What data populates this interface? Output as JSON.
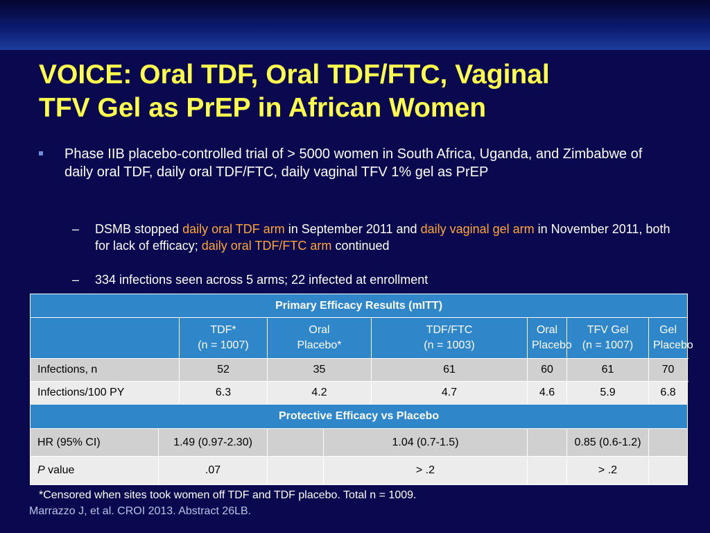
{
  "slide": {
    "title_line1": "VOICE: Oral TDF, Oral TDF/FTC, Vaginal",
    "title_line2": "TFV Gel as PrEP in African Women",
    "bullet": "Phase IIB placebo-controlled trial of > 5000 women in South Africa, Uganda, and Zimbabwe of daily oral TDF, daily oral TDF/FTC, daily vaginal TFV 1% gel as PrEP",
    "sub1": {
      "dash": "–",
      "t1": "DSMB stopped ",
      "h1": "daily oral TDF arm",
      "t2": " in September 2011 and ",
      "h2": "daily vaginal gel arm",
      "t3": " in November 2011, both for lack of efficacy; ",
      "h3": "daily oral TDF/FTC arm",
      "t4": " continued"
    },
    "sub2": {
      "dash": "–",
      "text": "334 infections seen across 5 arms; 22 infected at enrollment"
    }
  },
  "table": {
    "section1": "Primary Efficacy Results (mITT)",
    "columns": [
      {
        "l1": "TDF*",
        "l2": "(n = 1007)"
      },
      {
        "l1": "Oral",
        "l2": "Placebo*"
      },
      {
        "l1": "TDF/FTC",
        "l2": "(n = 1003)"
      },
      {
        "l1": "Oral",
        "l2": "Placebo"
      },
      {
        "l1": "TFV Gel",
        "l2": "(n = 1007)"
      },
      {
        "l1": "Gel",
        "l2": "Placebo"
      }
    ],
    "rows": [
      {
        "label": "Infections, n",
        "values": [
          "52",
          "35",
          "61",
          "60",
          "61",
          "70"
        ]
      },
      {
        "label": "Infections/100 PY",
        "values": [
          "6.3",
          "4.2",
          "4.7",
          "4.6",
          "5.9",
          "6.8"
        ]
      }
    ],
    "section2": "Protective Efficacy vs Placebo",
    "hr": {
      "label": "HR (95% CI)",
      "tdf": "1.49 (0.97-2.30)",
      "tdf_ftc": "1.04 (0.7-1.5)",
      "gel": "0.85 (0.6-1.2)"
    },
    "pval": {
      "label_italic": "P",
      "label_rest": " value",
      "tdf": ".07",
      "tdf_ftc": "> .2",
      "gel": "> .2"
    }
  },
  "footnote": "*Censored when sites took women off TDF and TDF placebo. Total n = 1009.",
  "citation": "Marrazzo J, et al. CROI 2013. Abstract 26LB.",
  "colors": {
    "background": "#0a0950",
    "title": "#ffff4d",
    "highlight": "#ffa63a",
    "table_header": "#2f86c8",
    "row_dark": "#d0d0d0",
    "row_light": "#ececec"
  }
}
